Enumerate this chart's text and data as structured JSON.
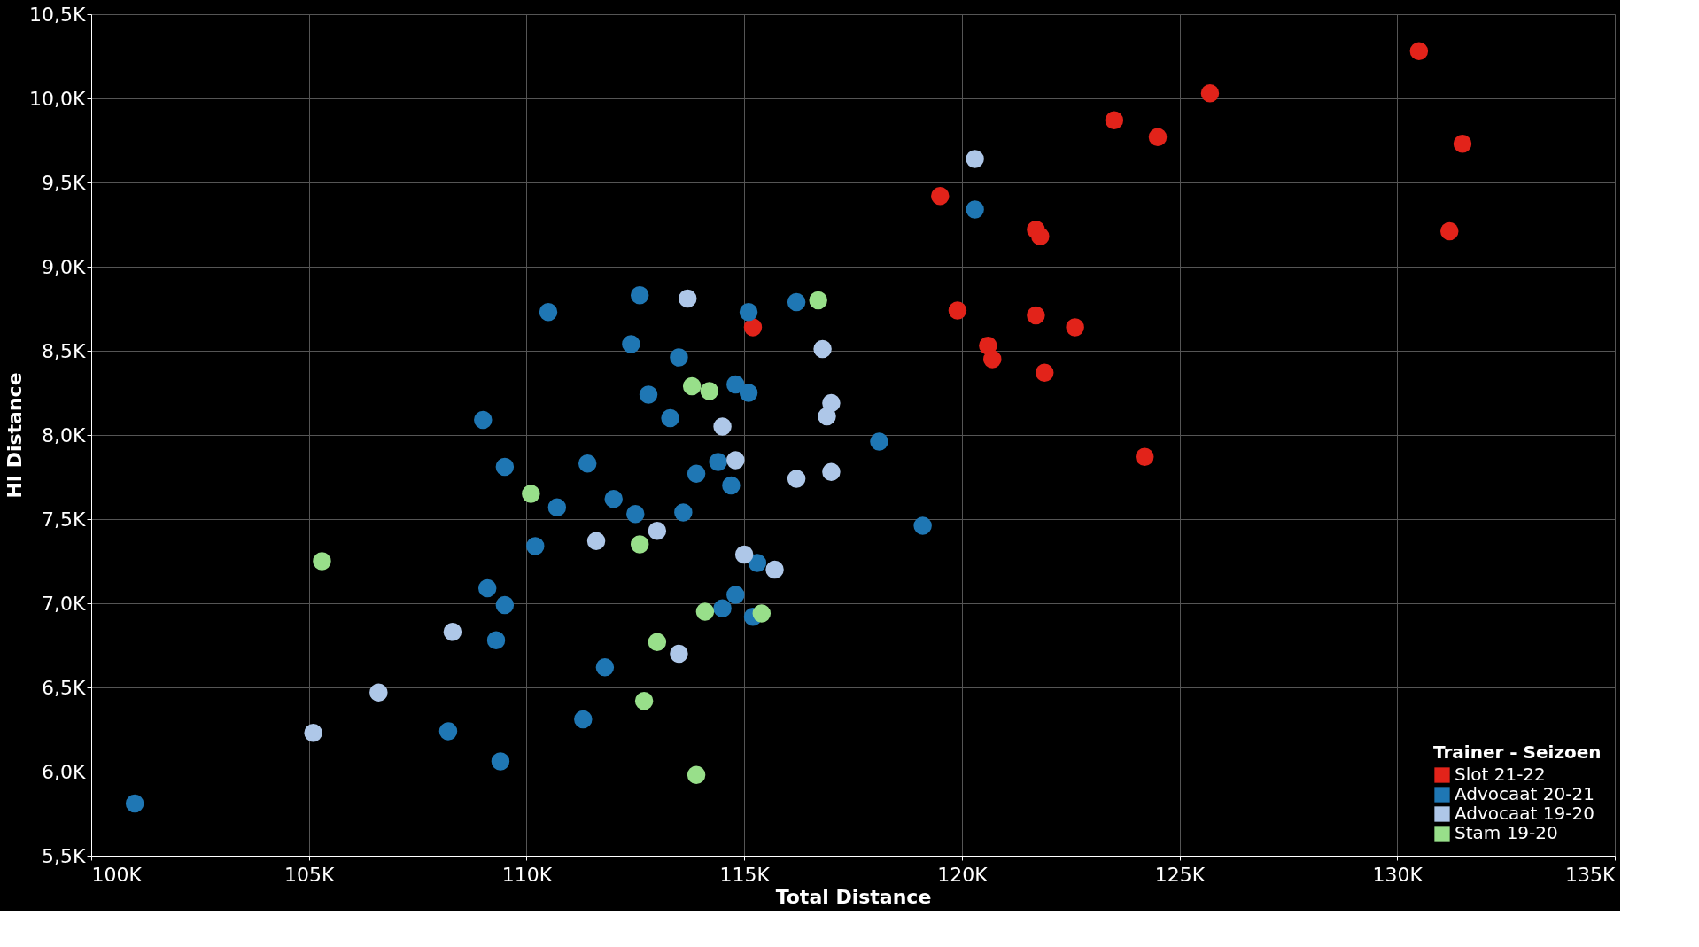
{
  "chart_data": {
    "type": "scatter",
    "xlabel": "Total Distance",
    "ylabel": "HI Distance",
    "legend_title": "Trainer - Seizoen",
    "legend": "bottom right",
    "grid": true,
    "marker": "circle",
    "xlim": [
      100000,
      135000
    ],
    "ylim": [
      5500,
      10500
    ],
    "xticks": [
      {
        "value": 100000,
        "label": "100K"
      },
      {
        "value": 105000,
        "label": "105K"
      },
      {
        "value": 110000,
        "label": "110K"
      },
      {
        "value": 115000,
        "label": "115K"
      },
      {
        "value": 120000,
        "label": "120K"
      },
      {
        "value": 125000,
        "label": "125K"
      },
      {
        "value": 130000,
        "label": "130K"
      },
      {
        "value": 135000,
        "label": "135K"
      }
    ],
    "yticks": [
      {
        "value": 5500,
        "label": "5,5K"
      },
      {
        "value": 6000,
        "label": "6,0K"
      },
      {
        "value": 6500,
        "label": "6,5K"
      },
      {
        "value": 7000,
        "label": "7,0K"
      },
      {
        "value": 7500,
        "label": "7,5K"
      },
      {
        "value": 8000,
        "label": "8,0K"
      },
      {
        "value": 8500,
        "label": "8,5K"
      },
      {
        "value": 9000,
        "label": "9,0K"
      },
      {
        "value": 9500,
        "label": "9,5K"
      },
      {
        "value": 10000,
        "label": "10,0K"
      },
      {
        "value": 10500,
        "label": "10,5K"
      }
    ],
    "series": [
      {
        "name": "Slot 21-22",
        "color": "#e2231a",
        "x": [
          130500,
          125700,
          123500,
          124500,
          131500,
          119500,
          131200,
          121700,
          121800,
          119900,
          121700,
          115200,
          122600,
          120600,
          120700,
          121900,
          124200
        ],
        "values": [
          10280,
          10030,
          9870,
          9770,
          9730,
          9420,
          9210,
          9220,
          9180,
          8740,
          8710,
          8640,
          8640,
          8530,
          8450,
          8370,
          7870
        ]
      },
      {
        "name": "Advocaat 20-21",
        "color": "#1f77b4",
        "x": [
          101000,
          120300,
          112600,
          110500,
          115100,
          116200,
          112400,
          113500,
          112800,
          114800,
          115100,
          113300,
          109000,
          118100,
          109500,
          111400,
          114400,
          113900,
          114700,
          112000,
          110700,
          112500,
          113600,
          119100,
          110200,
          115300,
          109100,
          109500,
          114800,
          114500,
          115200,
          109300,
          111800,
          111300,
          108200,
          109400
        ],
        "values": [
          5810,
          9340,
          8830,
          8730,
          8730,
          8790,
          8540,
          8460,
          8240,
          8300,
          8250,
          8100,
          8090,
          7960,
          7810,
          7830,
          7840,
          7770,
          7700,
          7620,
          7570,
          7530,
          7540,
          7460,
          7340,
          7240,
          7090,
          6990,
          7050,
          6970,
          6920,
          6780,
          6620,
          6310,
          6240,
          6060
        ]
      },
      {
        "name": "Advocaat 19-20",
        "color": "#aec7e8",
        "x": [
          120300,
          113700,
          116800,
          117000,
          116900,
          114500,
          114800,
          117000,
          116200,
          113000,
          111600,
          115000,
          115700,
          108300,
          113500,
          106600,
          105100
        ],
        "values": [
          9640,
          8810,
          8510,
          8190,
          8110,
          8050,
          7850,
          7780,
          7740,
          7430,
          7370,
          7290,
          7200,
          6830,
          6700,
          6470,
          6230
        ]
      },
      {
        "name": "Stam 19-20",
        "color": "#98df8a",
        "x": [
          116700,
          113800,
          114200,
          110100,
          112600,
          105300,
          114100,
          115400,
          113000,
          112700,
          113900
        ],
        "values": [
          8800,
          8290,
          8260,
          7650,
          7350,
          7250,
          6950,
          6940,
          6770,
          6420,
          5980
        ]
      }
    ]
  }
}
